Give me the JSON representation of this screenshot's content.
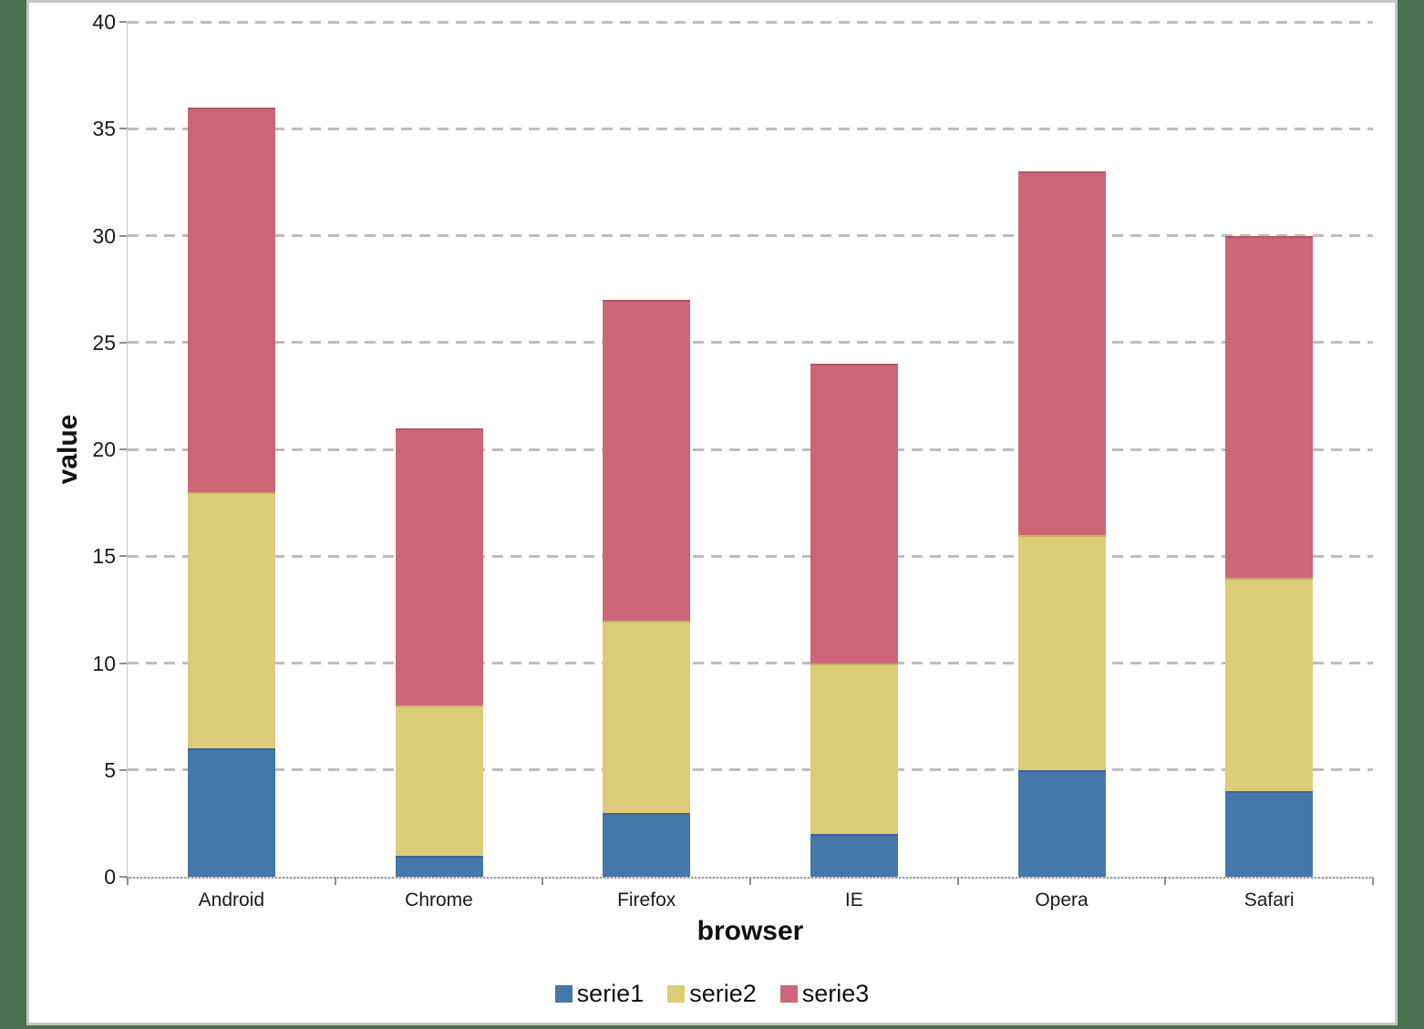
{
  "page": {
    "background_color": "#4a714f",
    "panel_background": "#ffffff",
    "panel_border_color": "#c5c8c5",
    "gridline_color": "#bdbdbd",
    "tick_color": "#8f8f8f",
    "text_color": "#1a1a1a"
  },
  "chart_data": {
    "type": "bar",
    "stacked": true,
    "title": "",
    "xlabel": "browser",
    "ylabel": "value",
    "categories": [
      "Android",
      "Chrome",
      "Firefox",
      "IE",
      "Opera",
      "Safari"
    ],
    "series": [
      {
        "name": "serie1",
        "color": "#4477AA",
        "values": [
          6,
          1,
          3,
          2,
          5,
          4
        ]
      },
      {
        "name": "serie2",
        "color": "#DDCC77",
        "values": [
          12,
          7,
          9,
          8,
          11,
          10
        ]
      },
      {
        "name": "serie3",
        "color": "#CC6677",
        "values": [
          18,
          13,
          15,
          14,
          17,
          16
        ]
      }
    ],
    "stacked_totals": [
      36,
      21,
      27,
      24,
      33,
      30
    ],
    "ylim": [
      0,
      40
    ],
    "ytick_step": 5,
    "yticks": [
      "0",
      "5",
      "10",
      "15",
      "20",
      "25",
      "30",
      "35",
      "40"
    ],
    "grid": "horizontal-dashed",
    "legend_position": "bottom"
  }
}
